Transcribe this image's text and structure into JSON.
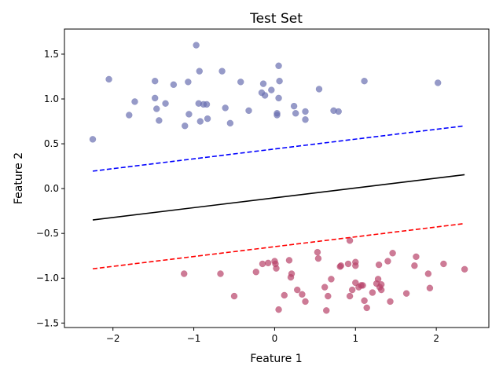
{
  "chart_data": {
    "type": "scatter",
    "title": "Test Set",
    "xlabel": "Feature 1",
    "ylabel": "Feature 2",
    "xlim": [
      -2.6,
      2.65
    ],
    "ylim": [
      -1.55,
      1.78
    ],
    "xticks": [
      -2,
      -1,
      0,
      1,
      2
    ],
    "xtick_labels": [
      "−2",
      "−1",
      "0",
      "1",
      "2"
    ],
    "yticks": [
      -1.5,
      -1.0,
      -0.5,
      0.0,
      0.5,
      1.0,
      1.5
    ],
    "ytick_labels": [
      "−1.5",
      "−1.0",
      "−0.5",
      "0.0",
      "0.5",
      "1.0",
      "1.5"
    ],
    "grid": false,
    "legend": "none",
    "series": [
      {
        "color": "#6a6fb0",
        "marker": "circle",
        "points": [
          [
            -2.25,
            0.55
          ],
          [
            -2.05,
            1.22
          ],
          [
            -1.8,
            0.82
          ],
          [
            -1.73,
            0.97
          ],
          [
            -1.48,
            1.2
          ],
          [
            -1.48,
            1.01
          ],
          [
            -1.46,
            0.89
          ],
          [
            -1.43,
            0.76
          ],
          [
            -1.35,
            0.95
          ],
          [
            -1.25,
            1.16
          ],
          [
            -1.11,
            0.7
          ],
          [
            -1.07,
            1.19
          ],
          [
            -1.06,
            0.83
          ],
          [
            -0.97,
            1.6
          ],
          [
            -0.94,
            0.95
          ],
          [
            -0.93,
            1.31
          ],
          [
            -0.92,
            0.75
          ],
          [
            -0.88,
            0.94
          ],
          [
            -0.84,
            0.94
          ],
          [
            -0.83,
            0.78
          ],
          [
            -0.65,
            1.31
          ],
          [
            -0.61,
            0.9
          ],
          [
            -0.55,
            0.73
          ],
          [
            -0.42,
            1.19
          ],
          [
            -0.32,
            0.87
          ],
          [
            -0.16,
            1.07
          ],
          [
            -0.14,
            1.17
          ],
          [
            -0.12,
            1.04
          ],
          [
            -0.04,
            1.1
          ],
          [
            0.03,
            0.84
          ],
          [
            0.03,
            0.82
          ],
          [
            0.05,
            1.37
          ],
          [
            0.05,
            1.01
          ],
          [
            0.06,
            1.2
          ],
          [
            0.24,
            0.92
          ],
          [
            0.26,
            0.84
          ],
          [
            0.38,
            0.77
          ],
          [
            0.38,
            0.86
          ],
          [
            0.55,
            1.11
          ],
          [
            0.73,
            0.87
          ],
          [
            0.79,
            0.86
          ],
          [
            1.11,
            1.2
          ],
          [
            2.02,
            1.18
          ]
        ]
      },
      {
        "color": "#b8436a",
        "marker": "circle",
        "points": [
          [
            -1.12,
            -0.95
          ],
          [
            -0.67,
            -0.95
          ],
          [
            -0.5,
            -1.2
          ],
          [
            -0.23,
            -0.93
          ],
          [
            -0.15,
            -0.84
          ],
          [
            -0.08,
            -0.83
          ],
          [
            0.0,
            -0.81
          ],
          [
            0.01,
            -0.84
          ],
          [
            0.02,
            -0.89
          ],
          [
            0.05,
            -1.35
          ],
          [
            0.12,
            -1.19
          ],
          [
            0.18,
            -0.8
          ],
          [
            0.2,
            -0.99
          ],
          [
            0.21,
            -0.95
          ],
          [
            0.28,
            -1.13
          ],
          [
            0.34,
            -1.18
          ],
          [
            0.38,
            -1.26
          ],
          [
            0.53,
            -0.71
          ],
          [
            0.54,
            -0.78
          ],
          [
            0.62,
            -1.1
          ],
          [
            0.64,
            -1.36
          ],
          [
            0.66,
            -1.2
          ],
          [
            0.7,
            -1.01
          ],
          [
            0.81,
            -0.87
          ],
          [
            0.82,
            -0.86
          ],
          [
            0.91,
            -0.84
          ],
          [
            0.93,
            -0.58
          ],
          [
            0.93,
            -1.2
          ],
          [
            0.96,
            -1.13
          ],
          [
            1.0,
            -0.86
          ],
          [
            1.0,
            -0.82
          ],
          [
            1.0,
            -1.05
          ],
          [
            1.04,
            -1.1
          ],
          [
            1.07,
            -1.08
          ],
          [
            1.09,
            -1.08
          ],
          [
            1.11,
            -1.25
          ],
          [
            1.14,
            -1.33
          ],
          [
            1.21,
            -1.16
          ],
          [
            1.26,
            -1.06
          ],
          [
            1.28,
            -1.01
          ],
          [
            1.29,
            -0.85
          ],
          [
            1.3,
            -1.1
          ],
          [
            1.32,
            -1.13
          ],
          [
            1.32,
            -1.07
          ],
          [
            1.4,
            -0.81
          ],
          [
            1.43,
            -1.26
          ],
          [
            1.46,
            -0.72
          ],
          [
            1.63,
            -1.17
          ],
          [
            1.73,
            -0.86
          ],
          [
            1.75,
            -0.76
          ],
          [
            1.9,
            -0.95
          ],
          [
            1.92,
            -1.11
          ],
          [
            2.09,
            -0.84
          ],
          [
            2.35,
            -0.9
          ]
        ]
      }
    ],
    "lines": [
      {
        "style": "solid",
        "color": "#000000",
        "x": [
          -2.25,
          2.35
        ],
        "y": [
          -0.35,
          0.155
        ]
      },
      {
        "style": "dashed",
        "color": "#0000ff",
        "x": [
          -2.25,
          2.35
        ],
        "y": [
          0.195,
          0.7
        ]
      },
      {
        "style": "dashed",
        "color": "#ff0000",
        "x": [
          -2.25,
          2.35
        ],
        "y": [
          -0.895,
          -0.39
        ]
      }
    ]
  }
}
